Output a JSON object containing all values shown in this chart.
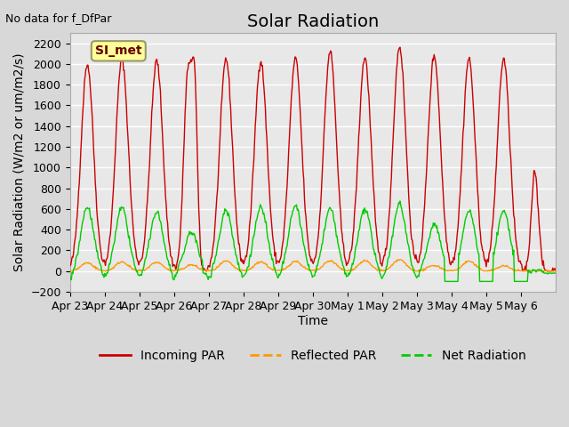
{
  "title": "Solar Radiation",
  "top_left_text": "No data for f_DfPar",
  "ylabel": "Solar Radiation (W/m2 or um/m2/s)",
  "xlabel": "Time",
  "ylim": [
    -200,
    2300
  ],
  "yticks": [
    -200,
    0,
    200,
    400,
    600,
    800,
    1000,
    1200,
    1400,
    1600,
    1800,
    2000,
    2200
  ],
  "x_labels": [
    "Apr 23",
    "Apr 24",
    "Apr 25",
    "Apr 26",
    "Apr 27",
    "Apr 28",
    "Apr 29",
    "Apr 30",
    "May 1",
    "May 2",
    "May 3",
    "May 4",
    "May 5",
    "May 6"
  ],
  "legend_labels": [
    "Incoming PAR",
    "Reflected PAR",
    "Net Radiation"
  ],
  "legend_colors": [
    "#cc0000",
    "#ff9900",
    "#00cc00"
  ],
  "box_label": "SI_met",
  "box_color": "#ffff99",
  "box_border": "#999966",
  "plot_bg_color": "#e8e8e8",
  "fig_bg_color": "#d8d8d8",
  "grid_color": "#ffffff",
  "title_fontsize": 14,
  "label_fontsize": 10,
  "tick_fontsize": 9,
  "n_days": 14,
  "points_per_day": 48,
  "incoming_peaks": [
    2000,
    2050,
    2030,
    1900,
    2050,
    2030,
    2050,
    2120,
    2060,
    2170,
    2080,
    2050,
    2050,
    970
  ],
  "reflected_peaks": [
    80,
    90,
    85,
    60,
    95,
    90,
    95,
    100,
    100,
    110,
    55,
    95,
    50,
    0
  ],
  "net_peaks": [
    620,
    610,
    570,
    380,
    590,
    620,
    630,
    600,
    600,
    650,
    450,
    580,
    580,
    0
  ]
}
